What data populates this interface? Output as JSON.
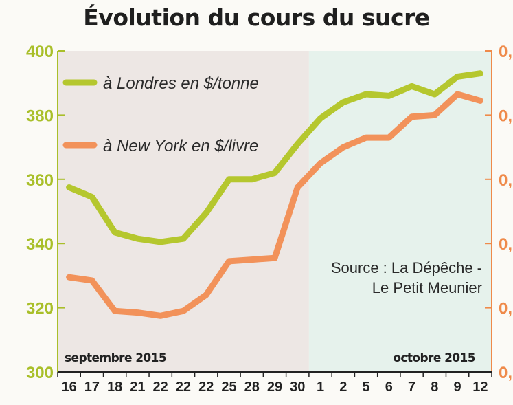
{
  "chart_data": {
    "type": "line",
    "title": "Évolution du cours du sucre",
    "categories": [
      "16",
      "17",
      "18",
      "21",
      "22",
      "22",
      "22",
      "25",
      "28",
      "29",
      "30",
      "1",
      "2",
      "5",
      "6",
      "7",
      "8",
      "9",
      "12"
    ],
    "periods": [
      {
        "label": "septembre 2015",
        "from_index": 0,
        "to_index": 10,
        "color": "#ede7e4"
      },
      {
        "label": "octobre 2015",
        "from_index": 11,
        "to_index": 18,
        "color": "#e6f2ec"
      }
    ],
    "y_left": {
      "ylim": [
        300,
        400
      ],
      "ticks": [
        300,
        320,
        340,
        360,
        380,
        400
      ],
      "color": "#a9bf2a"
    },
    "y_right": {
      "ticks": [
        "0,",
        "0,",
        "0,",
        "0,",
        "0,",
        "0,"
      ],
      "color": "#ef8a4a"
    },
    "series": [
      {
        "name": "à Londres en $/tonne",
        "color": "#b5c72e",
        "values": [
          357.5,
          354.5,
          343.5,
          341.5,
          340.5,
          341.5,
          349.5,
          360,
          360,
          362,
          371,
          379,
          384,
          386.5,
          386,
          389,
          386.5,
          392,
          393
        ]
      },
      {
        "name": "à New York en $/livre",
        "color": "#f2925a",
        "values_left_axis_units": [
          329.5,
          328.5,
          319,
          318.5,
          317.5,
          319,
          324,
          334.5,
          335,
          335.5,
          357.5,
          365,
          370,
          373,
          373,
          379.5,
          380,
          386.5,
          384.5
        ]
      }
    ],
    "grid": false,
    "legend": "top-left",
    "annotation": [
      "Source : La Dépêche -",
      "Le Petit Meunier"
    ]
  }
}
